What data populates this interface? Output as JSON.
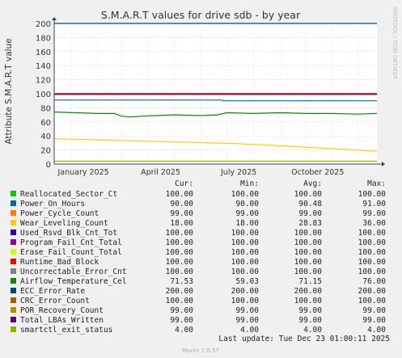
{
  "title": "S.M.A.R.T values for drive sdb - by year",
  "ylabel": "Attribute S.M.A.R.T value",
  "watermark": "RRDTOOL / TOBI OETIKER",
  "footer": "Munin 2.0.57",
  "last_update": "Last update: Tue Dec 23 01:00:11 2025",
  "table_headers": [
    "Cur:",
    "Min:",
    "Avg:",
    "Max:"
  ],
  "legend": [
    {
      "name": "Reallocated_Sector_Ct",
      "color": "#00cc00",
      "cur": "100.00",
      "min": "100.00",
      "avg": "100.00",
      "max": "100.00"
    },
    {
      "name": "Power_On_Hours",
      "color": "#0066b3",
      "cur": "90.00",
      "min": "90.00",
      "avg": "90.48",
      "max": "91.00"
    },
    {
      "name": "Power_Cycle_Count",
      "color": "#ff8000",
      "cur": "99.00",
      "min": "99.00",
      "avg": "99.00",
      "max": "99.00"
    },
    {
      "name": "Wear_Leveling_Count",
      "color": "#ffcc00",
      "cur": "18.00",
      "min": "18.00",
      "avg": "28.83",
      "max": "36.00"
    },
    {
      "name": "Used_Rsvd_Blk_Cnt_Tot",
      "color": "#330099",
      "cur": "100.00",
      "min": "100.00",
      "avg": "100.00",
      "max": "100.00"
    },
    {
      "name": "Program_Fail_Cnt_Total",
      "color": "#990099",
      "cur": "100.00",
      "min": "100.00",
      "avg": "100.00",
      "max": "100.00"
    },
    {
      "name": "Erase_Fail_Count_Total",
      "color": "#ccff00",
      "cur": "100.00",
      "min": "100.00",
      "avg": "100.00",
      "max": "100.00"
    },
    {
      "name": "Runtime_Bad_Block",
      "color": "#ff0000",
      "cur": "100.00",
      "min": "100.00",
      "avg": "100.00",
      "max": "100.00"
    },
    {
      "name": "Uncorrectable_Error_Cnt",
      "color": "#808080",
      "cur": "100.00",
      "min": "100.00",
      "avg": "100.00",
      "max": "100.00"
    },
    {
      "name": "Airflow_Temperature_Cel",
      "color": "#008f00",
      "cur": "71.53",
      "min": "59.03",
      "avg": "71.15",
      "max": "76.00"
    },
    {
      "name": "ECC_Error_Rate",
      "color": "#00487d",
      "cur": "200.00",
      "min": "200.00",
      "avg": "200.00",
      "max": "200.00"
    },
    {
      "name": "CRC_Error_Count",
      "color": "#b35a00",
      "cur": "100.00",
      "min": "100.00",
      "avg": "100.00",
      "max": "100.00"
    },
    {
      "name": "POR_Recovery_Count",
      "color": "#b38f00",
      "cur": "99.00",
      "min": "99.00",
      "avg": "99.00",
      "max": "99.00"
    },
    {
      "name": "Total_LBAs_Written",
      "color": "#6b006b",
      "cur": "99.00",
      "min": "99.00",
      "avg": "99.00",
      "max": "99.00"
    },
    {
      "name": "smartctl_exit_status",
      "color": "#8fb300",
      "cur": "4.00",
      "min": "4.00",
      "avg": "4.00",
      "max": "4.00"
    }
  ],
  "chart_data": {
    "type": "line",
    "ylabel": "Attribute S.M.A.R.T value",
    "ylim": [
      0,
      200
    ],
    "yticks": [
      0,
      20,
      40,
      60,
      80,
      100,
      120,
      140,
      160,
      180,
      200
    ],
    "xlim": [
      "2024-12-12",
      "2025-12-23"
    ],
    "xticks": [
      {
        "label": "January 2025",
        "date": "2025-01-15"
      },
      {
        "label": "April 2025",
        "date": "2025-04-15"
      },
      {
        "label": "July 2025",
        "date": "2025-07-15"
      },
      {
        "label": "October 2025",
        "date": "2025-10-15"
      }
    ],
    "grid": true,
    "series": [
      {
        "name": "ECC_Error_Rate",
        "color": "#00487d",
        "x": [
          "2024-12-12",
          "2025-12-23"
        ],
        "y": [
          200,
          200
        ]
      },
      {
        "name": "Reallocated_Sector_Ct",
        "color": "#00cc00",
        "x": [
          "2024-12-12",
          "2025-12-23"
        ],
        "y": [
          100,
          100
        ]
      },
      {
        "name": "Used_Rsvd_Blk_Cnt_Tot",
        "color": "#330099",
        "x": [
          "2024-12-12",
          "2025-12-23"
        ],
        "y": [
          100,
          100
        ]
      },
      {
        "name": "Program_Fail_Cnt_Total",
        "color": "#990099",
        "x": [
          "2024-12-12",
          "2025-12-23"
        ],
        "y": [
          100,
          100
        ]
      },
      {
        "name": "Erase_Fail_Count_Total",
        "color": "#ccff00",
        "x": [
          "2024-12-12",
          "2025-12-23"
        ],
        "y": [
          100,
          100
        ]
      },
      {
        "name": "Uncorrectable_Error_Cnt",
        "color": "#808080",
        "x": [
          "2024-12-12",
          "2025-12-23"
        ],
        "y": [
          100,
          100
        ]
      },
      {
        "name": "CRC_Error_Count",
        "color": "#b35a00",
        "x": [
          "2024-12-12",
          "2025-12-23"
        ],
        "y": [
          100,
          100
        ]
      },
      {
        "name": "Runtime_Bad_Block",
        "color": "#ff0000",
        "x": [
          "2024-12-12",
          "2025-12-23"
        ],
        "y": [
          100,
          100
        ]
      },
      {
        "name": "Power_Cycle_Count",
        "color": "#ff8000",
        "x": [
          "2024-12-12",
          "2025-12-23"
        ],
        "y": [
          99,
          99
        ]
      },
      {
        "name": "POR_Recovery_Count",
        "color": "#b38f00",
        "x": [
          "2024-12-12",
          "2025-12-23"
        ],
        "y": [
          99,
          99
        ]
      },
      {
        "name": "Total_LBAs_Written",
        "color": "#6b006b",
        "x": [
          "2024-12-12",
          "2025-12-23"
        ],
        "y": [
          99,
          99
        ]
      },
      {
        "name": "Power_On_Hours",
        "color": "#0066b3",
        "x": [
          "2024-12-12",
          "2025-06-25",
          "2025-06-26",
          "2025-12-23"
        ],
        "y": [
          91,
          91,
          90,
          90
        ]
      },
      {
        "name": "Airflow_Temperature_Cel",
        "color": "#008f00",
        "x": [
          "2024-12-12",
          "2025-01-05",
          "2025-02-01",
          "2025-02-20",
          "2025-03-01",
          "2025-03-10",
          "2025-03-25",
          "2025-04-10",
          "2025-05-01",
          "2025-06-01",
          "2025-06-20",
          "2025-07-01",
          "2025-08-01",
          "2025-09-01",
          "2025-10-01",
          "2025-11-01",
          "2025-12-01",
          "2025-12-23"
        ],
        "y": [
          74,
          73,
          72,
          72,
          68,
          67,
          68,
          69,
          70,
          69,
          70,
          73,
          72,
          73,
          72,
          72,
          71,
          72
        ]
      },
      {
        "name": "Wear_Leveling_Count",
        "color": "#ffcc00",
        "x": [
          "2024-12-12",
          "2025-01-15",
          "2025-03-15",
          "2025-05-15",
          "2025-07-15",
          "2025-09-01",
          "2025-10-15",
          "2025-11-15",
          "2025-12-23"
        ],
        "y": [
          36,
          35,
          33,
          31,
          29,
          26,
          23,
          21,
          18
        ]
      },
      {
        "name": "smartctl_exit_status",
        "color": "#8fb300",
        "x": [
          "2024-12-12",
          "2025-12-23"
        ],
        "y": [
          4,
          4
        ]
      }
    ]
  }
}
